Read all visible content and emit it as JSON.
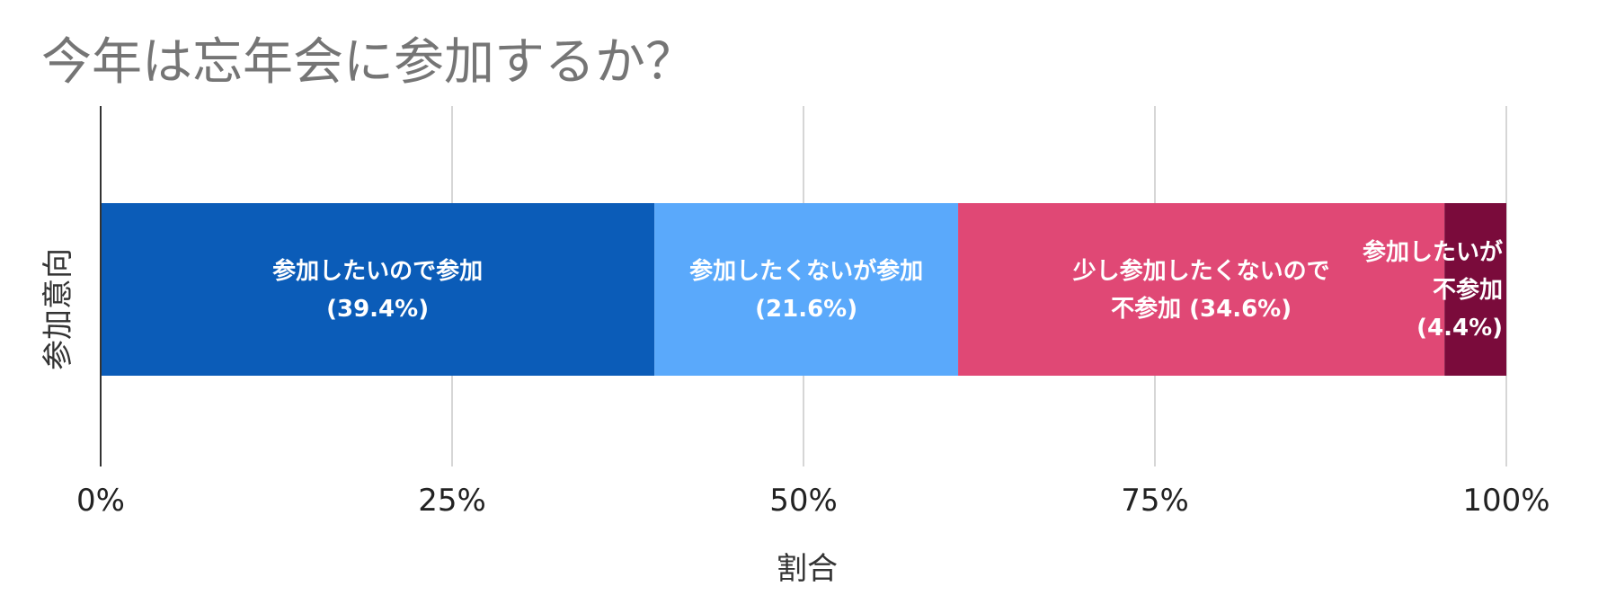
{
  "chart_data": {
    "type": "bar",
    "orientation": "horizontal",
    "stacked": true,
    "title": "今年は忘年会に参加するか？",
    "xlabel": "割合",
    "ylabel": "参加意向",
    "xlim": [
      0,
      100
    ],
    "x_ticks": [
      "0%",
      "25%",
      "50%",
      "75%",
      "100%"
    ],
    "grid": true,
    "legend": "none",
    "segments": [
      {
        "value": 39.4,
        "color": "#0b5cb8",
        "label_lines": [
          "参加したいので参加",
          "(39.4%)"
        ]
      },
      {
        "value": 21.6,
        "color": "#5aa9fb",
        "label_lines": [
          "参加したくないが参加",
          "(21.6%)"
        ]
      },
      {
        "value": 34.6,
        "color": "#e04875",
        "label_lines": [
          "少し参加したくないので",
          "不参加 (34.6%)"
        ]
      },
      {
        "value": 4.4,
        "color": "#7a0b3b",
        "label_lines": [
          "参加したいが",
          "不参加",
          "(4.4%)"
        ]
      }
    ]
  }
}
